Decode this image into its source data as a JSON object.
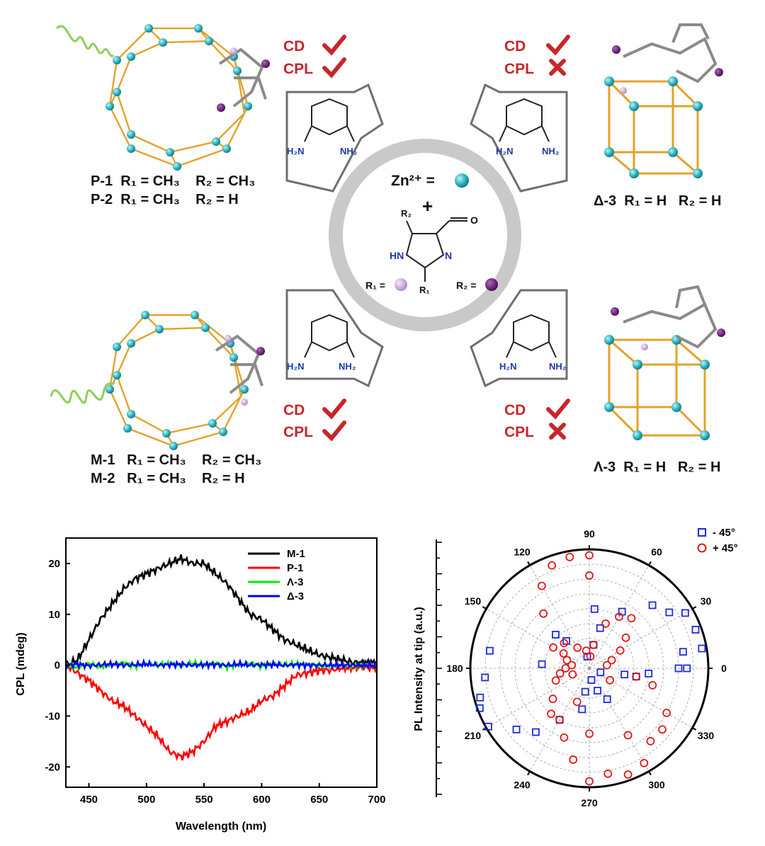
{
  "scheme": {
    "zn_label": "Zn²⁺ =",
    "plus": "+",
    "hn": "HN",
    "n": "N",
    "o": "O",
    "r1_label": "R₁ =",
    "r2_label": "R₂ =",
    "r1": "R₁",
    "r2": "R₂",
    "amine": "NH₂",
    "amine_left": "H₂N",
    "colors": {
      "zn": "#2fb6c4",
      "r1": "#c9a8dc",
      "r2": "#6a1f7a",
      "cage": "#e6a12a",
      "red": "#c7262b",
      "helix": "#8fce5a"
    },
    "top_left": {
      "cd": "CD",
      "cpl": "CPL",
      "cd_ok": true,
      "cpl_ok": true,
      "line1": "P-1  R₁ = CH₃    R₂ = CH₃",
      "line2": "P-2  R₁ = CH₃    R₂ = H"
    },
    "top_right": {
      "cd": "CD",
      "cpl": "CPL",
      "cd_ok": true,
      "cpl_ok": false,
      "line1": "Δ-3  R₁ = H   R₂ = H"
    },
    "bottom_left": {
      "cd": "CD",
      "cpl": "CPL",
      "cd_ok": true,
      "cpl_ok": true,
      "line1": "M-1   R₁ = CH₃    R₂ = CH₃",
      "line2": "M-2   R₁ = CH₃    R₂ = H"
    },
    "bottom_right": {
      "cd": "CD",
      "cpl": "CPL",
      "cd_ok": true,
      "cpl_ok": false,
      "line1": "Λ-3  R₁ = H   R₂ = H"
    }
  },
  "chart_data": [
    {
      "type": "line",
      "xlabel": "Wavelength (nm)",
      "ylabel": "CPL (mdeg)",
      "xlim": [
        430,
        700
      ],
      "ylim": [
        -24,
        25
      ],
      "xticks": [
        450,
        500,
        550,
        600,
        650,
        700
      ],
      "yticks": [
        -20,
        -10,
        0,
        10,
        20
      ],
      "legend_position": "top-right",
      "x": [
        430,
        440,
        450,
        460,
        470,
        480,
        490,
        500,
        510,
        520,
        530,
        540,
        550,
        560,
        570,
        580,
        590,
        600,
        610,
        620,
        630,
        640,
        650,
        660,
        670,
        680,
        690,
        700
      ],
      "series": [
        {
          "name": "M-1",
          "color": "#000000",
          "values": [
            0,
            1,
            5,
            9,
            12,
            15,
            17,
            18,
            19,
            20,
            21,
            20,
            20,
            18,
            16,
            13,
            10,
            9,
            7,
            5,
            4,
            3,
            2,
            1.5,
            1,
            0.5,
            0.5,
            0.5
          ]
        },
        {
          "name": "P-1",
          "color": "#ff0000",
          "values": [
            0,
            -1.5,
            -3,
            -5,
            -7,
            -8,
            -10,
            -12,
            -14,
            -17,
            -18,
            -17,
            -15,
            -12,
            -11,
            -10,
            -9,
            -7,
            -6,
            -4,
            -2,
            -1.5,
            -1,
            -1,
            -0.5,
            -0.5,
            -0.5,
            -0.5
          ]
        },
        {
          "name": "Λ-3",
          "color": "#00ee00",
          "values": [
            0,
            -0.5,
            0.3,
            -0.3,
            0.2,
            0.5,
            -0.2,
            0.4,
            0,
            0.3,
            -0.2,
            0.4,
            0,
            0.5,
            -0.3,
            0.2,
            0.4,
            -0.2,
            0.3,
            0,
            0.2,
            0.1,
            0,
            0,
            0,
            0,
            0,
            0
          ]
        },
        {
          "name": "Δ-3",
          "color": "#0000ff",
          "values": [
            0,
            0.2,
            -0.1,
            0.1,
            0.2,
            0,
            0.1,
            0.2,
            0,
            0.1,
            0.2,
            0,
            0.1,
            0.1,
            0,
            0.2,
            0,
            0.1,
            0.1,
            0,
            0.1,
            0,
            0,
            0,
            0,
            0,
            0,
            0
          ]
        }
      ]
    },
    {
      "type": "scatter",
      "subtype": "polar",
      "rlabel": "PL Intensity at tip (a.u.)",
      "angle_ticks": [
        0,
        30,
        60,
        90,
        120,
        150,
        180,
        210,
        240,
        270,
        300,
        330
      ],
      "legend_position": "top-right",
      "series": [
        {
          "name": "- 45°",
          "color": "#1c2bd8",
          "marker": "square",
          "points": [
            [
              0,
              0.75
            ],
            [
              0,
              0.82
            ],
            [
              10,
              0.96
            ],
            [
              20,
              0.95
            ],
            [
              30,
              0.93
            ],
            [
              35,
              0.82
            ],
            [
              10,
              0.8
            ],
            [
              -5,
              0.5
            ],
            [
              -10,
              0.3
            ],
            [
              -10,
              0.4
            ],
            [
              -20,
              0.1
            ],
            [
              45,
              0.75
            ],
            [
              60,
              0.55
            ],
            [
              75,
              0.35
            ],
            [
              80,
              0.2
            ],
            [
              85,
              0.5
            ],
            [
              100,
              0.1
            ],
            [
              130,
              0.3
            ],
            [
              135,
              0.4
            ],
            [
              170,
              0.85
            ],
            [
              175,
              0.4
            ],
            [
              185,
              0.88
            ],
            [
              195,
              0.95
            ],
            [
              200,
              0.98
            ],
            [
              210,
              0.98
            ],
            [
              220,
              0.8
            ],
            [
              230,
              0.7
            ],
            [
              240,
              0.5
            ],
            [
              260,
              0.2
            ],
            [
              260,
              0.35
            ],
            [
              280,
              0.1
            ],
            [
              290,
              0.2
            ],
            [
              300,
              0.3
            ]
          ]
        },
        {
          "name": "+ 45°",
          "color": "#e01818",
          "marker": "circle",
          "points": [
            [
              90,
              0.95
            ],
            [
              90,
              0.78
            ],
            [
              100,
              0.95
            ],
            [
              110,
              0.92
            ],
            [
              120,
              0.8
            ],
            [
              130,
              0.6
            ],
            [
              135,
              0.3
            ],
            [
              150,
              0.35
            ],
            [
              160,
              0.2
            ],
            [
              170,
              0.15
            ],
            [
              180,
              0.2
            ],
            [
              190,
              0.25
            ],
            [
              200,
              0.3
            ],
            [
              220,
              0.4
            ],
            [
              230,
              0.5
            ],
            [
              240,
              0.5
            ],
            [
              250,
              0.62
            ],
            [
              260,
              0.78
            ],
            [
              270,
              0.95
            ],
            [
              280,
              0.9
            ],
            [
              290,
              0.95
            ],
            [
              300,
              0.92
            ],
            [
              310,
              0.8
            ],
            [
              320,
              0.8
            ],
            [
              330,
              0.75
            ],
            [
              345,
              0.55
            ],
            [
              350,
              0.4
            ],
            [
              10,
              0.15
            ],
            [
              20,
              0.2
            ],
            [
              30,
              0.3
            ],
            [
              40,
              0.4
            ],
            [
              50,
              0.55
            ],
            [
              60,
              0.5
            ],
            [
              70,
              0.4
            ],
            [
              80,
              0.2
            ],
            [
              85,
              0.1
            ],
            [
              100,
              0.15
            ],
            [
              120,
              0.2
            ],
            [
              150,
              0.25
            ],
            [
              200,
              0.15
            ],
            [
              250,
              0.3
            ],
            [
              270,
              0.55
            ],
            [
              300,
              0.65
            ],
            [
              330,
              0.2
            ]
          ]
        }
      ]
    }
  ]
}
